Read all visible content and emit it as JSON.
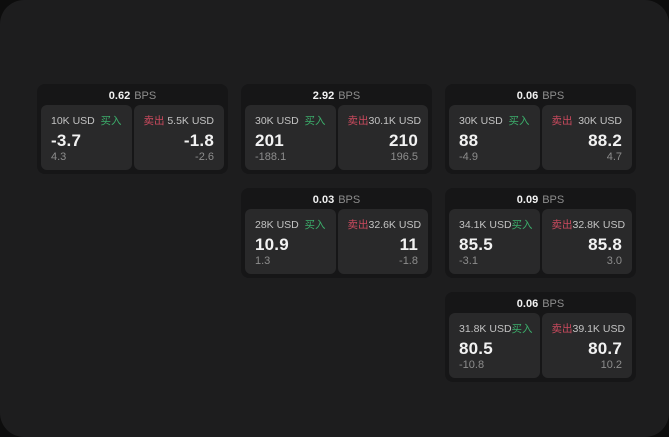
{
  "labels": {
    "bps_unit": "BPS",
    "buy": "买入",
    "sell": "卖出"
  },
  "colors": {
    "window_bg": "#1d1d1e",
    "card_bg": "#161617",
    "panel_bg": "#29292a",
    "value_white": "#f2f2f2",
    "label_gray": "#c3c3c3",
    "sub_gray": "#8d8d8d",
    "buy_green": "#3cae6b",
    "sell_red": "#cb4a5e"
  },
  "cards": [
    {
      "bps": "0.62",
      "buy": {
        "amount": "10K USD",
        "price": "-3.7",
        "sub": "4.3"
      },
      "sell": {
        "amount": "5.5K USD",
        "price": "-1.8",
        "sub": "-2.6"
      }
    },
    {
      "bps": "2.92",
      "buy": {
        "amount": "30K USD",
        "price": "201",
        "sub": "-188.1"
      },
      "sell": {
        "amount": "30.1K USD",
        "price": "210",
        "sub": "196.5"
      }
    },
    {
      "bps": "0.06",
      "buy": {
        "amount": "30K USD",
        "price": "88",
        "sub": "-4.9"
      },
      "sell": {
        "amount": "30K USD",
        "price": "88.2",
        "sub": "4.7"
      }
    },
    {
      "bps": "0.03",
      "buy": {
        "amount": "28K USD",
        "price": "10.9",
        "sub": "1.3"
      },
      "sell": {
        "amount": "32.6K USD",
        "price": "11",
        "sub": "-1.8"
      }
    },
    {
      "bps": "0.09",
      "buy": {
        "amount": "34.1K USD",
        "price": "85.5",
        "sub": "-3.1"
      },
      "sell": {
        "amount": "32.8K USD",
        "price": "85.8",
        "sub": "3.0"
      }
    },
    {
      "bps": "0.06",
      "buy": {
        "amount": "31.8K USD",
        "price": "80.5",
        "sub": "-10.8"
      },
      "sell": {
        "amount": "39.1K USD",
        "price": "80.7",
        "sub": "10.2"
      }
    }
  ]
}
